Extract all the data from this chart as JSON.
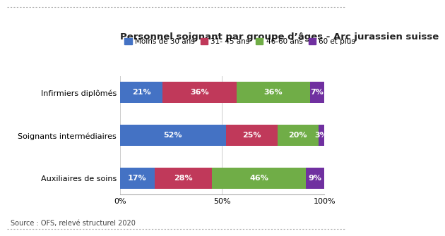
{
  "title": "Personnel soignant par groupe d’âges - Arc jurassien suisse",
  "categories": [
    "Infirmiers diplômés",
    "Soignants intermédiaires",
    "Auxiliaires de soins"
  ],
  "series": [
    {
      "label": "Moins de 30 ans",
      "color": "#4472C4",
      "values": [
        21,
        52,
        17
      ]
    },
    {
      "label": "31- 45 ans",
      "color": "#C0395A",
      "values": [
        36,
        25,
        28
      ]
    },
    {
      "label": "46-60 ans",
      "color": "#70AD47",
      "values": [
        36,
        20,
        46
      ]
    },
    {
      "label": "60 et plus",
      "color": "#7030A0",
      "values": [
        7,
        3,
        9
      ]
    }
  ],
  "xlabel_ticks": [
    0,
    50,
    100
  ],
  "xlabel_tick_labels": [
    "0%",
    "50%",
    "100%"
  ],
  "source": "Source : OFS, relevé structurel 2020",
  "background_color": "#ffffff",
  "title_fontsize": 9.5,
  "label_fontsize": 8,
  "bar_label_fontsize": 8,
  "legend_fontsize": 7.5,
  "source_fontsize": 7,
  "bar_height": 0.5
}
